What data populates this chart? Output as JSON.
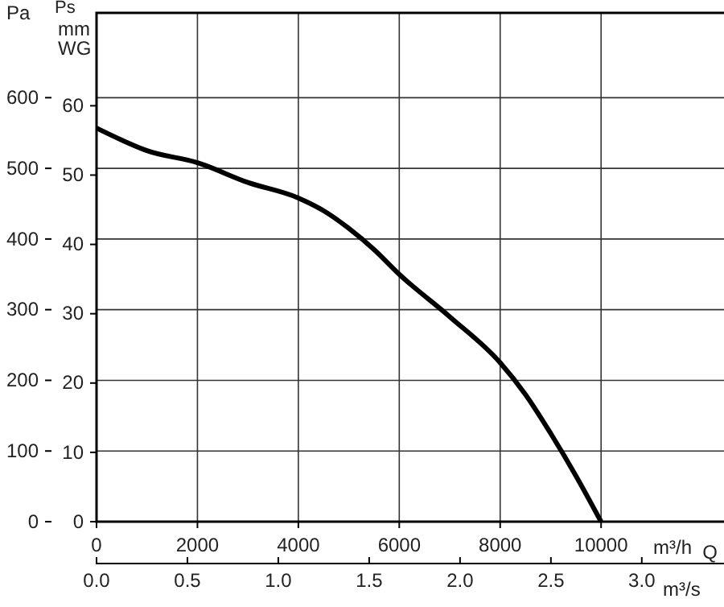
{
  "chart_data": {
    "type": "line",
    "ylabel": "Pa",
    "y2label": "mm WG",
    "xlabel": "m³/h",
    "x2label": "m³/s",
    "annotations": [
      "Ps",
      "Q"
    ],
    "x": [
      0,
      500,
      1000,
      2000,
      3000,
      4000,
      4500,
      5000,
      5500,
      6000,
      7000,
      8000,
      8500,
      9000,
      9500,
      10000
    ],
    "series": [
      {
        "color": "#000000",
        "values": [
          557,
          540,
          525,
          508,
          480,
          458,
          440,
          415,
          385,
          350,
          290,
          225,
          180,
          125,
          65,
          0
        ]
      }
    ],
    "xlim": [
      0,
      12500
    ],
    "xticks": [
      0,
      2000,
      4000,
      6000,
      8000,
      10000
    ],
    "x2lim": [
      0,
      3.47
    ],
    "x2ticks": [
      {
        "value": 0,
        "label": "0.0"
      },
      {
        "value": 0.5,
        "label": "0.5"
      },
      {
        "value": 1,
        "label": "1.0"
      },
      {
        "value": 1.5,
        "label": "1.5"
      },
      {
        "value": 2,
        "label": "2.0"
      },
      {
        "value": 2.5,
        "label": "2.5"
      },
      {
        "value": 3,
        "label": "3.0"
      }
    ],
    "ylim": [
      0,
      720
    ],
    "yticks": [
      0,
      100,
      200,
      300,
      400,
      500,
      600
    ],
    "y2lim": [
      0,
      73.4
    ],
    "y2ticks": [
      0,
      10,
      20,
      30,
      40,
      50,
      60
    ],
    "grid": true,
    "line_style": "solid",
    "marker": "none"
  }
}
